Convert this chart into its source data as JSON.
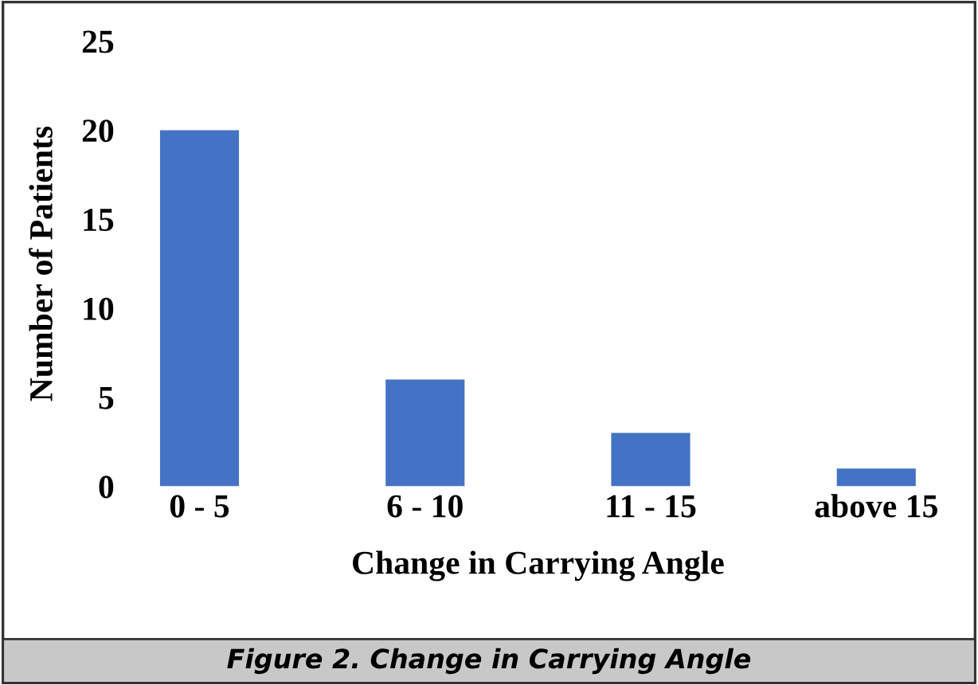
{
  "chart_data": {
    "type": "bar",
    "xlabel": "Change in Carrying Angle",
    "ylabel": "Number of Patients",
    "categories": [
      "0 - 5",
      "6 - 10",
      "11 - 15",
      "above 15"
    ],
    "values": [
      20,
      6,
      3,
      1
    ],
    "color": "#4472c4",
    "ylim": [
      0,
      25
    ],
    "yticks": [
      0,
      5,
      10,
      15,
      20,
      25
    ],
    "grid": false,
    "legend": false,
    "annotations": [
      "Figure 2. Change in Carrying Angle"
    ]
  }
}
